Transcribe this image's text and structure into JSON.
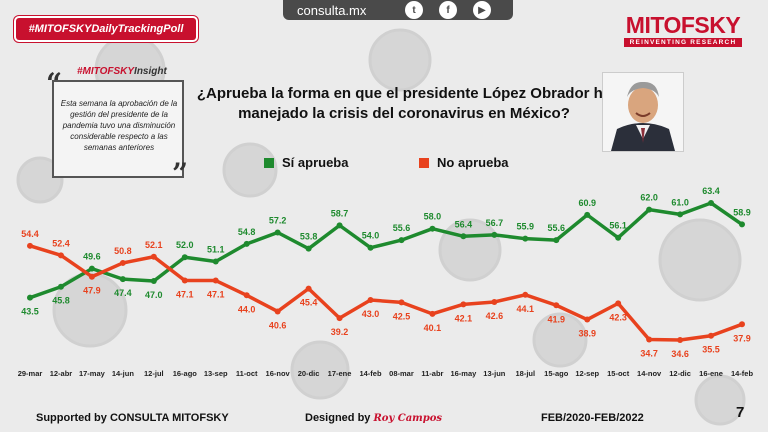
{
  "header": {
    "hashtag": "#MITOFSKYDailyTrackingPoll",
    "site": "consulta.mx",
    "social_icons": [
      "twitter-icon",
      "facebook-icon",
      "youtube-icon"
    ],
    "logo_name": "MITOFSKY",
    "logo_tagline": "REINVENTING RESEARCH"
  },
  "insight": {
    "title_prefix": "#MITOFSKY",
    "title_suffix": "Insight",
    "text": "Esta semana la aprobación de la gestión del presidente de la pandemia tuvo una disminución considerable respecto a las semanas anteriores"
  },
  "question": "¿Aprueba la forma en que el presidente López Obrador ha manejado la crisis del coronavirus en México?",
  "footer": {
    "supported": "Supported by CONSULTA MITOFSKY",
    "designed_label": "Designed by",
    "designed_signature": "Roy Campos",
    "period": "FEB/2020-FEB/2022",
    "page": "7"
  },
  "colors": {
    "green": "#1e8a2e",
    "red": "#e8421e",
    "brand": "#c8102e"
  },
  "chart_data": {
    "type": "line",
    "categories": [
      "29-mar",
      "12-abr",
      "17-may",
      "14-jun",
      "12-jul",
      "16-ago",
      "13-sep",
      "11-oct",
      "16-nov",
      "20-dic",
      "17-ene",
      "14-feb",
      "08-mar",
      "11-abr",
      "16-may",
      "13-jun",
      "18-jul",
      "15-ago",
      "12-sep",
      "15-oct",
      "14-nov",
      "12-dic",
      "16-ene",
      "14-feb"
    ],
    "series": [
      {
        "name": "Sí aprueba",
        "color": "#1e8a2e",
        "values": [
          43.5,
          45.8,
          49.6,
          47.4,
          47.0,
          52.0,
          51.1,
          54.8,
          57.2,
          53.8,
          58.7,
          54.0,
          55.6,
          58.0,
          56.4,
          56.7,
          55.9,
          55.6,
          60.9,
          56.1,
          62.0,
          61.0,
          63.4,
          58.9
        ],
        "labels": [
          "43.5",
          "45.8",
          "49.6",
          "47.4",
          "47.0",
          "52.0",
          "51.1",
          "54.8",
          "57.2",
          "53.8",
          "58.7",
          "54.0",
          "55.6",
          "58.0",
          "56.4",
          "56.7",
          "55.9",
          "55.6",
          "60.9",
          "56.1",
          "62.0",
          "61.0",
          "63.4",
          "58.9"
        ]
      },
      {
        "name": "No aprueba",
        "color": "#e8421e",
        "values": [
          54.4,
          52.4,
          47.9,
          50.8,
          52.1,
          47.1,
          47.1,
          44.0,
          40.6,
          45.4,
          39.2,
          43.0,
          42.5,
          40.1,
          42.1,
          42.6,
          44.1,
          41.9,
          38.9,
          42.3,
          34.7,
          34.6,
          35.5,
          37.9
        ],
        "labels": [
          "54.4",
          "52.4",
          "47.9",
          "50.8",
          "52.1",
          "47.1",
          "47.1",
          "44.0",
          "40.6",
          "45.4",
          "39.2",
          "43.0",
          "42.5",
          "40.1",
          "42.1",
          "42.6",
          "44.1",
          "41.9",
          "38.9",
          "42.3",
          "34.7",
          "34.6",
          "35.5",
          "37.9"
        ]
      }
    ],
    "legend_position": "top",
    "grid": false
  }
}
